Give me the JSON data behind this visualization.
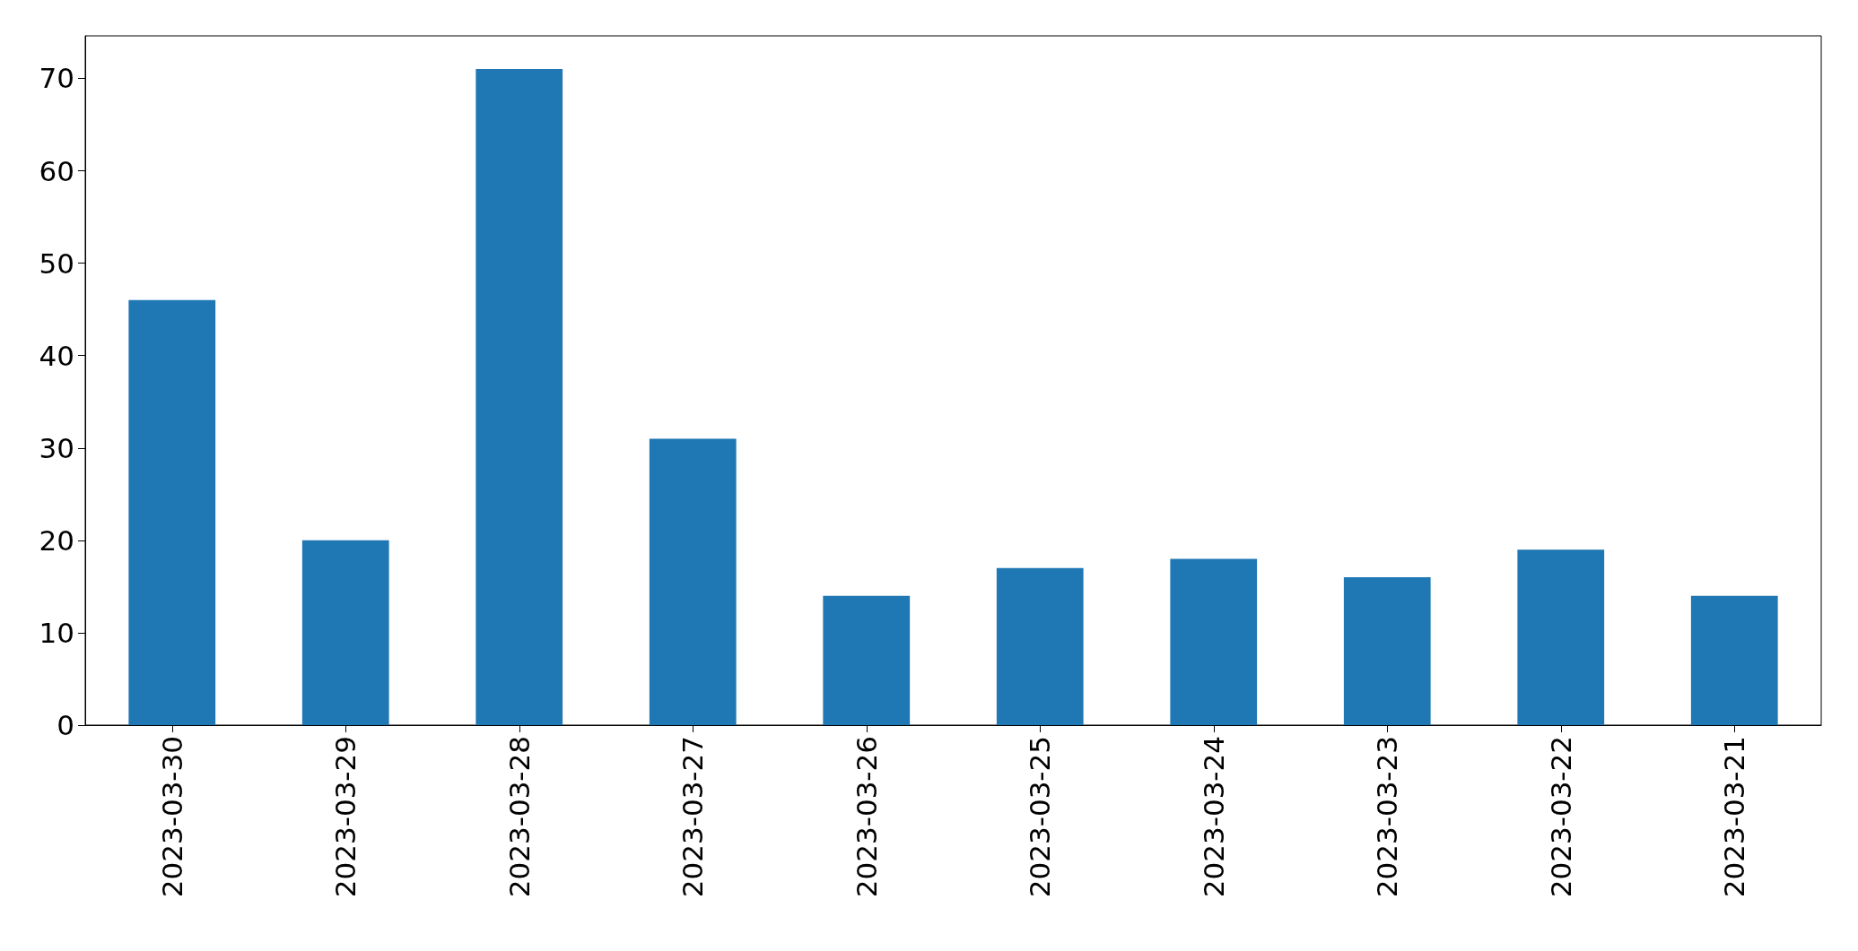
{
  "chart_data": {
    "type": "bar",
    "categories": [
      "2023-03-30",
      "2023-03-29",
      "2023-03-28",
      "2023-03-27",
      "2023-03-26",
      "2023-03-25",
      "2023-03-24",
      "2023-03-23",
      "2023-03-22",
      "2023-03-21"
    ],
    "values": [
      46,
      20,
      71,
      31,
      14,
      17,
      18,
      16,
      19,
      14
    ],
    "color": "#1f77b4",
    "ylim": [
      0,
      74.6
    ],
    "yticks": [
      0,
      10,
      20,
      30,
      40,
      50,
      60,
      70
    ]
  }
}
